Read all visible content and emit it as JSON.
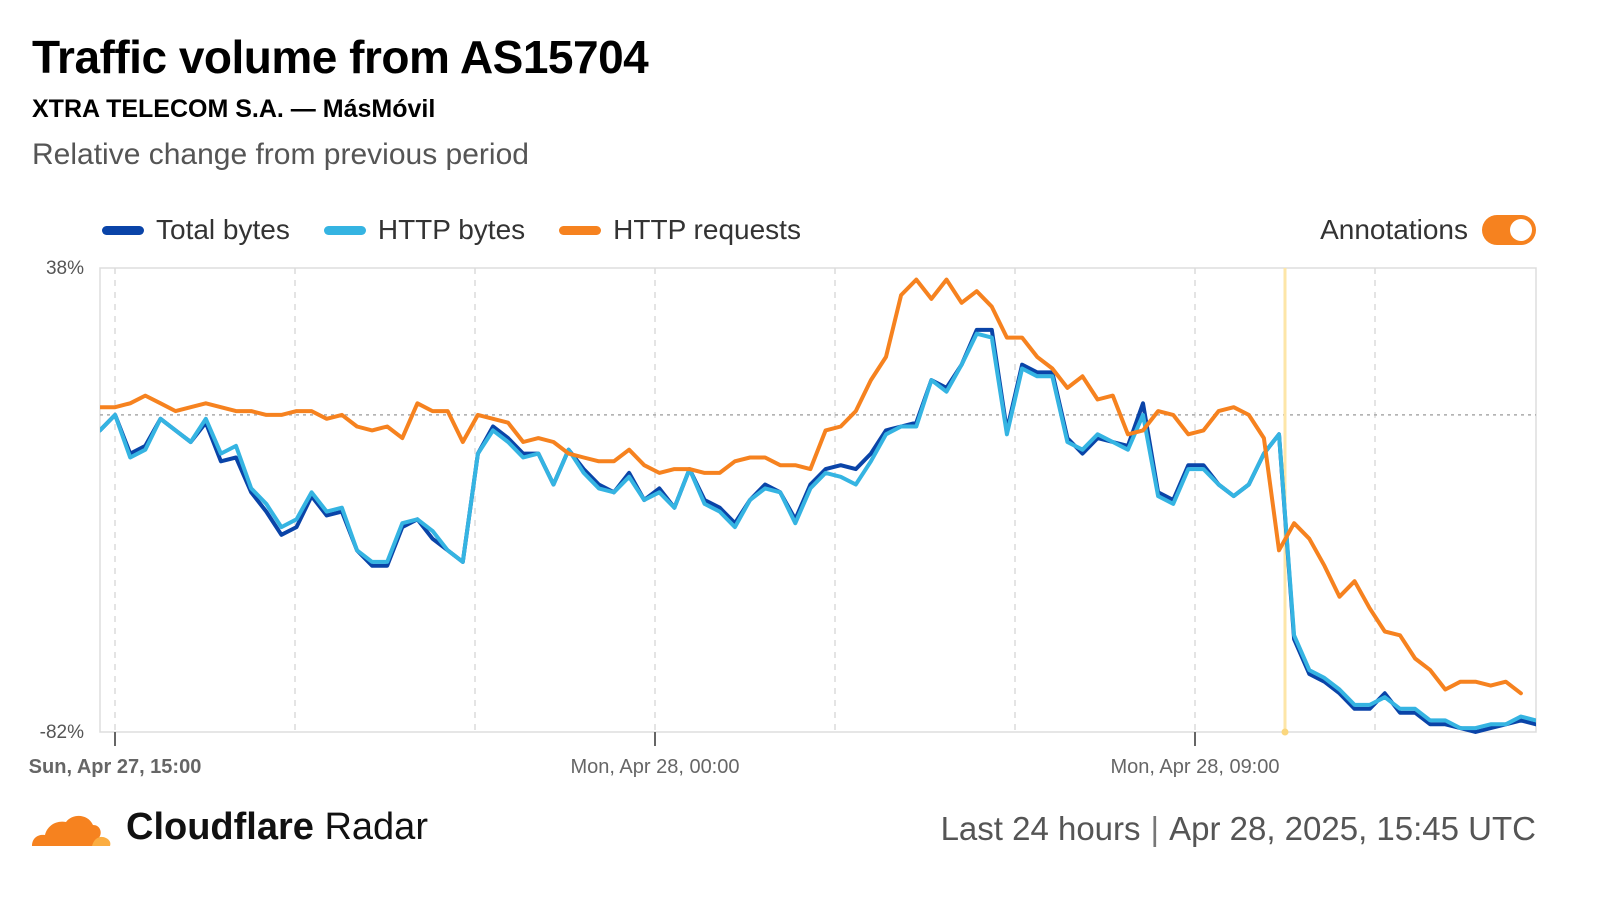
{
  "header": {
    "title": "Traffic volume from AS15704",
    "subtitle": "XTRA TELECOM S.A. — MásMóvil",
    "description": "Relative change from previous period"
  },
  "legend": {
    "items": [
      {
        "label": "Total bytes",
        "color": "#0a44a8"
      },
      {
        "label": "HTTP bytes",
        "color": "#35b4e2"
      },
      {
        "label": "HTTP requests",
        "color": "#f6821f"
      }
    ],
    "annotations_label": "Annotations",
    "annotations_on": true,
    "toggle_color": "#f6821f"
  },
  "footer": {
    "brand_bold": "Cloudflare",
    "brand_regular": "Radar",
    "range": "Last 24 hours",
    "timestamp": "Apr 28, 2025, 15:45 UTC",
    "logo_colors": [
      "#f6821f",
      "#fbad41"
    ]
  },
  "chart_data": {
    "type": "line",
    "title": "Traffic volume from AS15704",
    "subtitle": "XTRA TELECOM S.A. — MásMóvil",
    "ylabel": "Relative change from previous period",
    "ylim": [
      -82,
      38
    ],
    "y_tick_labels": [
      "38%",
      "-82%"
    ],
    "x_start": "Sun, Apr 27, 15:45",
    "x_interval_minutes": 15,
    "x_ticks": [
      {
        "label": "Sun, Apr 27, 15:00",
        "index": 0
      },
      {
        "label": "Mon, Apr 28, 00:00",
        "index": 36
      },
      {
        "label": "Mon, Apr 28, 09:00",
        "index": 72
      }
    ],
    "annotation_index": 78,
    "grid": true,
    "baseline_value": 0,
    "series": [
      {
        "name": "Total bytes",
        "color": "#0a44a8",
        "values": [
          -4,
          0,
          -10,
          -8,
          -1,
          -4,
          -7,
          -2,
          -12,
          -11,
          -20,
          -25,
          -31,
          -29,
          -21,
          -26,
          -25,
          -35,
          -39,
          -39,
          -29,
          -27,
          -32,
          -35,
          -38,
          -10,
          -3,
          -6,
          -10,
          -10,
          -18,
          -9,
          -14,
          -18,
          -20,
          -15,
          -22,
          -19,
          -24,
          -14,
          -22,
          -24,
          -28,
          -22,
          -18,
          -20,
          -27,
          -18,
          -14,
          -13,
          -14,
          -10,
          -4,
          -3,
          -2,
          9,
          7,
          13,
          22,
          22,
          -4,
          13,
          11,
          11,
          -6,
          -10,
          -6,
          -7,
          -8,
          3,
          -20,
          -22,
          -13,
          -13,
          -18,
          -21,
          -18,
          -10,
          -5,
          -58,
          -67,
          -69,
          -72,
          -76,
          -76,
          -72,
          -77,
          -77,
          -80,
          -80,
          -81,
          -82,
          -81,
          -80,
          -79,
          -80
        ]
      },
      {
        "name": "HTTP bytes",
        "color": "#35b4e2",
        "values": [
          -4,
          0,
          -11,
          -9,
          -1,
          -4,
          -7,
          -1,
          -10,
          -8,
          -19,
          -23,
          -29,
          -27,
          -20,
          -25,
          -24,
          -35,
          -38,
          -38,
          -28,
          -27,
          -30,
          -35,
          -38,
          -10,
          -4,
          -7,
          -11,
          -10,
          -18,
          -9,
          -15,
          -19,
          -20,
          -16,
          -22,
          -20,
          -24,
          -14,
          -23,
          -25,
          -29,
          -22,
          -19,
          -20,
          -28,
          -19,
          -15,
          -16,
          -18,
          -12,
          -5,
          -3,
          -3,
          9,
          6,
          13,
          21,
          20,
          -5,
          12,
          10,
          10,
          -7,
          -9,
          -5,
          -7,
          -9,
          0,
          -21,
          -23,
          -14,
          -14,
          -18,
          -21,
          -18,
          -10,
          -5,
          -57,
          -66,
          -68,
          -71,
          -75,
          -75,
          -73,
          -76,
          -76,
          -79,
          -79,
          -81,
          -81,
          -80,
          -80,
          -78,
          -79
        ]
      },
      {
        "name": "HTTP requests",
        "color": "#f6821f",
        "values": [
          2,
          2,
          3,
          5,
          3,
          1,
          2,
          3,
          2,
          1,
          1,
          0,
          0,
          1,
          1,
          -1,
          0,
          -3,
          -4,
          -3,
          -6,
          3,
          1,
          1,
          -7,
          0,
          -1,
          -2,
          -7,
          -6,
          -7,
          -10,
          -11,
          -12,
          -12,
          -9,
          -13,
          -15,
          -14,
          -14,
          -15,
          -15,
          -12,
          -11,
          -11,
          -13,
          -13,
          -14,
          -4,
          -3,
          1,
          9,
          15,
          31,
          35,
          30,
          35,
          29,
          32,
          28,
          20,
          20,
          15,
          12,
          7,
          10,
          4,
          5,
          -5,
          -4,
          1,
          0,
          -5,
          -4,
          1,
          2,
          0,
          -6,
          -35,
          -28,
          -32,
          -39,
          -47,
          -43,
          -50,
          -56,
          -57,
          -63,
          -66,
          -71,
          -69,
          -69,
          -70,
          -69,
          -72
        ]
      }
    ]
  }
}
